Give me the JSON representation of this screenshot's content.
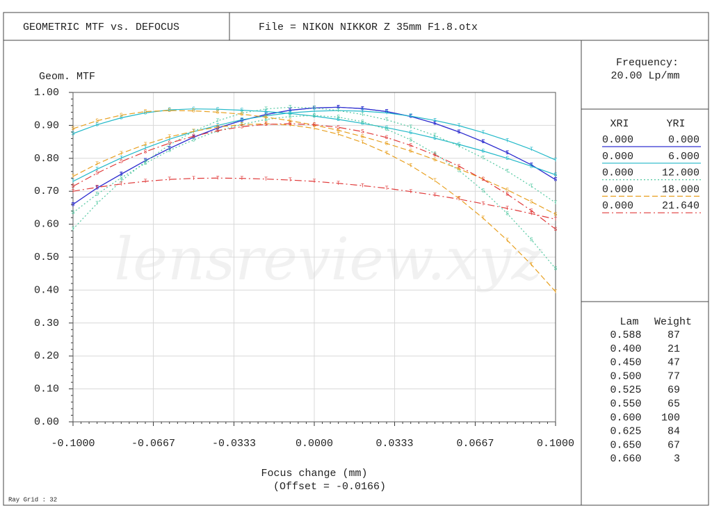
{
  "chart_data": {
    "type": "line",
    "title": "GEOMETRIC MTF vs. DEFOCUS",
    "file": "File = NIKON NIKKOR  Z 35mm F1.8.otx",
    "ylabel": "Geom. MTF",
    "xlabel": "Focus change (mm)",
    "offset": "(Offset = -0.0166)",
    "frequency_label": "Frequency:",
    "frequency": "20.00  Lp/mm",
    "ray_grid": "Ray Grid : 32",
    "watermark": "lensreview.xyz",
    "grid": true,
    "markers": {
      "tangential": "T",
      "sagittal": "S"
    },
    "legend_headers": [
      "XRI",
      "YRI"
    ],
    "xlim": [
      -0.1,
      0.1
    ],
    "xticks": [
      {
        "value": -0.1,
        "label": "-0.1000"
      },
      {
        "value": -0.0667,
        "label": "-0.0667"
      },
      {
        "value": -0.0333,
        "label": "-0.0333"
      },
      {
        "value": 0,
        "label": "0.0000"
      },
      {
        "value": 0.0333,
        "label": "0.0333"
      },
      {
        "value": 0.0667,
        "label": "0.0667"
      },
      {
        "value": 0.1,
        "label": "0.1000"
      }
    ],
    "ylim": [
      0,
      1
    ],
    "yticks": [
      {
        "value": 0,
        "label": "0.00"
      },
      {
        "value": 0.1,
        "label": "0.10"
      },
      {
        "value": 0.2,
        "label": "0.20"
      },
      {
        "value": 0.3,
        "label": "0.30"
      },
      {
        "value": 0.4,
        "label": "0.40"
      },
      {
        "value": 0.5,
        "label": "0.50"
      },
      {
        "value": 0.6,
        "label": "0.60"
      },
      {
        "value": 0.7,
        "label": "0.70"
      },
      {
        "value": 0.8,
        "label": "0.80"
      },
      {
        "value": 0.9,
        "label": "0.90"
      },
      {
        "value": 1,
        "label": "1.00"
      }
    ],
    "x": [
      -0.1,
      -0.09,
      -0.08,
      -0.07,
      -0.06,
      -0.05,
      -0.04,
      -0.03,
      -0.02,
      -0.01,
      0,
      0.01,
      0.02,
      0.03,
      0.04,
      0.05,
      0.06,
      0.07,
      0.08,
      0.09,
      0.1
    ],
    "series": [
      {
        "xri": "0.000",
        "yri": "0.000",
        "color": "#3030d0",
        "dash": "solid",
        "tangential": [
          0.66,
          0.71,
          0.752,
          0.793,
          0.83,
          0.864,
          0.892,
          0.915,
          0.933,
          0.946,
          0.953,
          0.955,
          0.951,
          0.942,
          0.927,
          0.906,
          0.88,
          0.85,
          0.817,
          0.78,
          0.735
        ],
        "sagittal": [
          0.66,
          0.71,
          0.752,
          0.793,
          0.83,
          0.864,
          0.892,
          0.915,
          0.933,
          0.946,
          0.953,
          0.955,
          0.951,
          0.942,
          0.927,
          0.906,
          0.88,
          0.85,
          0.817,
          0.78,
          0.735
        ]
      },
      {
        "xri": "0.000",
        "yri": "6.000",
        "color": "#20b8c8",
        "dash": "solid",
        "tangential": [
          0.73,
          0.767,
          0.801,
          0.831,
          0.858,
          0.881,
          0.9,
          0.917,
          0.929,
          0.938,
          0.943,
          0.945,
          0.943,
          0.938,
          0.928,
          0.915,
          0.899,
          0.878,
          0.854,
          0.827,
          0.795
        ],
        "sagittal": [
          0.875,
          0.902,
          0.923,
          0.938,
          0.947,
          0.95,
          0.949,
          0.946,
          0.942,
          0.936,
          0.928,
          0.918,
          0.906,
          0.893,
          0.878,
          0.861,
          0.842,
          0.822,
          0.8,
          0.776,
          0.75
        ]
      },
      {
        "xri": "0.000",
        "yri": "12.000",
        "color": "#50c8a0",
        "dash": "dotted",
        "tangential": [
          0.585,
          0.663,
          0.731,
          0.79,
          0.841,
          0.882,
          0.914,
          0.937,
          0.95,
          0.955,
          0.953,
          0.945,
          0.933,
          0.917,
          0.895,
          0.869,
          0.837,
          0.801,
          0.761,
          0.715,
          0.665
        ],
        "sagittal": [
          0.635,
          0.691,
          0.741,
          0.785,
          0.824,
          0.856,
          0.883,
          0.903,
          0.918,
          0.927,
          0.93,
          0.925,
          0.911,
          0.888,
          0.856,
          0.814,
          0.763,
          0.702,
          0.632,
          0.553,
          0.465
        ]
      },
      {
        "xri": "0.000",
        "yri": "18.000",
        "color": "#e8a020",
        "dash": "dashed",
        "tangential": [
          0.745,
          0.783,
          0.815,
          0.842,
          0.865,
          0.882,
          0.895,
          0.902,
          0.905,
          0.901,
          0.891,
          0.873,
          0.848,
          0.816,
          0.778,
          0.732,
          0.678,
          0.618,
          0.551,
          0.477,
          0.395
        ],
        "sagittal": [
          0.89,
          0.914,
          0.931,
          0.942,
          0.945,
          0.944,
          0.94,
          0.934,
          0.925,
          0.914,
          0.901,
          0.885,
          0.866,
          0.845,
          0.822,
          0.796,
          0.768,
          0.737,
          0.704,
          0.668,
          0.63
        ]
      },
      {
        "xri": "0.000",
        "yri": "21.640",
        "color": "#e03a3a",
        "dash": "dashdot",
        "tangential": [
          0.7,
          0.712,
          0.722,
          0.73,
          0.736,
          0.739,
          0.74,
          0.739,
          0.737,
          0.734,
          0.73,
          0.724,
          0.717,
          0.709,
          0.699,
          0.688,
          0.676,
          0.662,
          0.648,
          0.632,
          0.615
        ],
        "sagittal": [
          0.715,
          0.755,
          0.79,
          0.82,
          0.846,
          0.867,
          0.884,
          0.896,
          0.903,
          0.905,
          0.902,
          0.894,
          0.881,
          0.863,
          0.839,
          0.81,
          0.776,
          0.736,
          0.691,
          0.641,
          0.585
        ]
      }
    ],
    "wavelength_headers": [
      "Lam",
      "Weight"
    ],
    "wavelengths": [
      [
        "0.588",
        "87"
      ],
      [
        "0.400",
        "21"
      ],
      [
        "0.450",
        "47"
      ],
      [
        "0.500",
        "77"
      ],
      [
        "0.525",
        "69"
      ],
      [
        "0.550",
        "65"
      ],
      [
        "0.600",
        "100"
      ],
      [
        "0.625",
        "84"
      ],
      [
        "0.650",
        "67"
      ],
      [
        "0.660",
        "3"
      ]
    ]
  }
}
